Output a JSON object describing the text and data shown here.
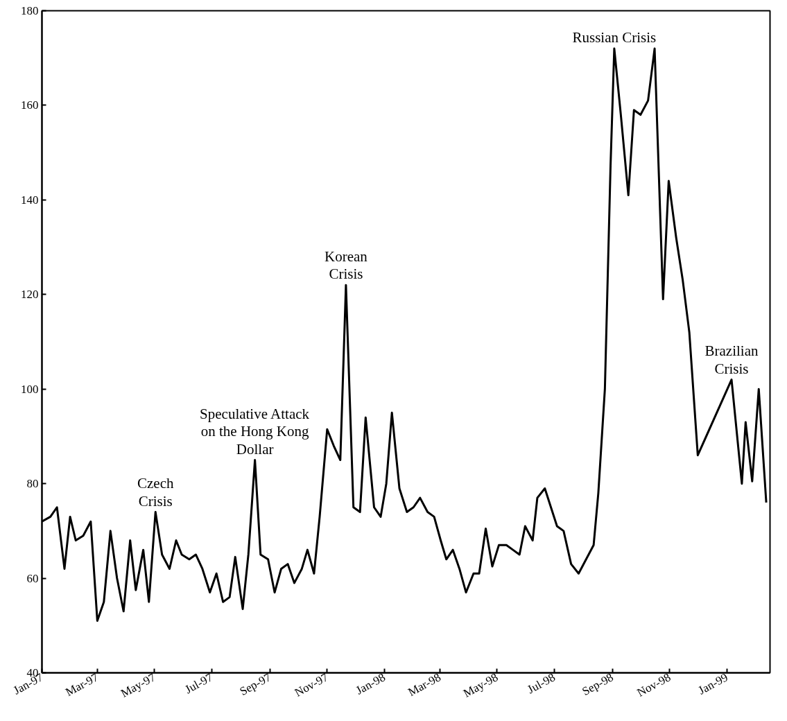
{
  "chart_data": {
    "type": "line",
    "grid": false,
    "marker": "none",
    "line_style": "solid",
    "series": [
      {
        "color": "#000000",
        "x": [
          "1997-01-01",
          "1997-01-10",
          "1997-01-17",
          "1997-01-25",
          "1997-01-31",
          "1997-02-06",
          "1997-02-14",
          "1997-02-22",
          "1997-03-01",
          "1997-03-08",
          "1997-03-15",
          "1997-03-22",
          "1997-03-29",
          "1997-04-05",
          "1997-04-11",
          "1997-04-19",
          "1997-04-25",
          "1997-05-02",
          "1997-05-09",
          "1997-05-17",
          "1997-05-24",
          "1997-05-30",
          "1997-06-07",
          "1997-06-14",
          "1997-06-21",
          "1997-06-29",
          "1997-07-06",
          "1997-07-13",
          "1997-07-20",
          "1997-07-26",
          "1997-08-03",
          "1997-08-09",
          "1997-08-16",
          "1997-08-22",
          "1997-08-30",
          "1997-09-06",
          "1997-09-13",
          "1997-09-20",
          "1997-09-27",
          "1997-10-05",
          "1997-10-11",
          "1997-10-18",
          "1997-10-24",
          "1997-11-01",
          "1997-11-08",
          "1997-11-15",
          "1997-11-21",
          "1997-11-29",
          "1997-12-06",
          "1997-12-12",
          "1997-12-21",
          "1997-12-28",
          "1998-01-03",
          "1998-01-09",
          "1998-01-17",
          "1998-01-25",
          "1998-02-01",
          "1998-02-08",
          "1998-02-16",
          "1998-02-23",
          "1998-03-02",
          "1998-03-08",
          "1998-03-15",
          "1998-03-22",
          "1998-03-29",
          "1998-04-06",
          "1998-04-12",
          "1998-04-19",
          "1998-04-26",
          "1998-05-03",
          "1998-05-11",
          "1998-05-18",
          "1998-05-25",
          "1998-05-31",
          "1998-06-08",
          "1998-06-13",
          "1998-06-21",
          "1998-07-04",
          "1998-07-11",
          "1998-07-19",
          "1998-07-27",
          "1998-08-04",
          "1998-08-12",
          "1998-08-17",
          "1998-08-24",
          "1998-08-30",
          "1998-09-03",
          "1998-09-10",
          "1998-09-18",
          "1998-09-24",
          "1998-10-01",
          "1998-10-09",
          "1998-10-16",
          "1998-10-25",
          "1998-10-31",
          "1998-11-08",
          "1998-11-15",
          "1998-11-22",
          "1998-12-01",
          "1999-01-06",
          "1999-01-17",
          "1999-01-21",
          "1999-01-28",
          "1999-02-04",
          "1999-02-12"
        ],
        "values": [
          72,
          73,
          75,
          62,
          73,
          68,
          69,
          72,
          51,
          55,
          70,
          60,
          53,
          68,
          57.5,
          66,
          55,
          74,
          65,
          62,
          68,
          65,
          64,
          65,
          62,
          57,
          61,
          55,
          56,
          64.5,
          53.5,
          65,
          85,
          65,
          64,
          57,
          62,
          63,
          59,
          62,
          66,
          61,
          73,
          91.5,
          88,
          85,
          122,
          75,
          74,
          94,
          75,
          73,
          80,
          95,
          79,
          74,
          75,
          77,
          74,
          73,
          68,
          64,
          66,
          62,
          57,
          61,
          61,
          70.5,
          62.5,
          67,
          67,
          66,
          65,
          71,
          68,
          77,
          79,
          71,
          70,
          63,
          61,
          64,
          67,
          78,
          100,
          147,
          172,
          158,
          141,
          159,
          158,
          161,
          172,
          119,
          144,
          132,
          123,
          112,
          86,
          102,
          80,
          93,
          80.5,
          100,
          76
        ]
      }
    ],
    "xlim": [
      "1997-01-01",
      "1999-02-16"
    ],
    "xticks": [
      {
        "value": "1997-01-01",
        "label": "Jan-97"
      },
      {
        "value": "1997-03-01",
        "label": "Mar-97"
      },
      {
        "value": "1997-05-01",
        "label": "May-97"
      },
      {
        "value": "1997-07-01",
        "label": "Jul-97"
      },
      {
        "value": "1997-09-01",
        "label": "Sep-97"
      },
      {
        "value": "1997-11-01",
        "label": "Nov-97"
      },
      {
        "value": "1998-01-01",
        "label": "Jan-98"
      },
      {
        "value": "1998-03-01",
        "label": "Mar-98"
      },
      {
        "value": "1998-05-01",
        "label": "May-98"
      },
      {
        "value": "1998-07-01",
        "label": "Jul-98"
      },
      {
        "value": "1998-09-01",
        "label": "Sep-98"
      },
      {
        "value": "1998-11-01",
        "label": "Nov-98"
      },
      {
        "value": "1999-01-01",
        "label": "Jan-99"
      }
    ],
    "ylim": [
      40,
      180
    ],
    "yticks": [
      40,
      60,
      80,
      100,
      120,
      140,
      160,
      180
    ],
    "annotations": [
      {
        "text": "Czech\nCrisis",
        "x": "1997-05-02",
        "y": 74
      },
      {
        "text": "Speculative Attack\non the Hong Kong\nDollar",
        "x": "1997-08-16",
        "y": 85
      },
      {
        "text": "Korean\nCrisis",
        "x": "1997-11-21",
        "y": 122
      },
      {
        "text": "Russian Crisis",
        "x": "1998-09-03",
        "y": 172
      },
      {
        "text": "Brazilian\nCrisis",
        "x": "1999-01-06",
        "y": 102
      }
    ]
  }
}
